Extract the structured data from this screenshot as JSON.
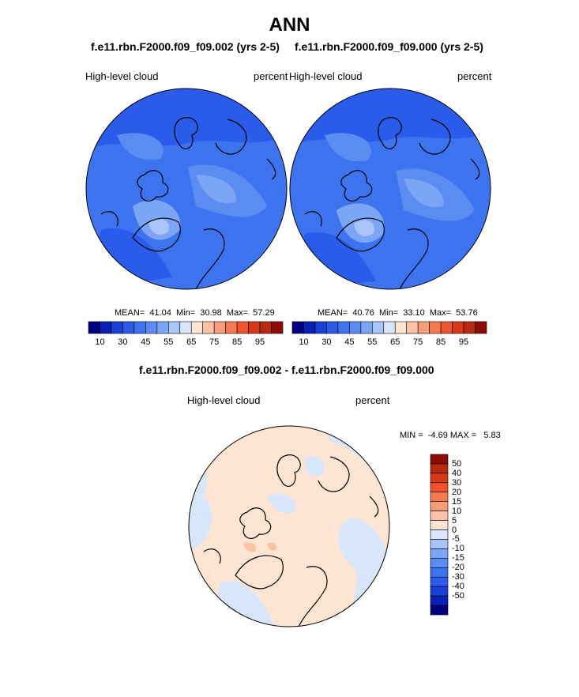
{
  "title": "ANN",
  "panels": [
    {
      "case_title": "f.e11.rbn.F2000.f09_f09.002 (yrs 2-5)",
      "variable": "High-level cloud",
      "units": "percent",
      "stats": "MEAN=  41.04  Min=  30.98  Max=  57.29"
    },
    {
      "case_title": "f.e11.rbn.F2000.f09_f09.000 (yrs 2-5)",
      "variable": "High-level cloud",
      "units": "percent",
      "stats": "MEAN=  40.76  Min=  33.10  Max=  53.76"
    }
  ],
  "colorbar_top": {
    "colors": [
      "#00007f",
      "#0a1fb5",
      "#1740d8",
      "#2a5bea",
      "#3d73ef",
      "#5a8cf2",
      "#7ba6f5",
      "#a8c4f8",
      "#d7e6fb",
      "#fde4d3",
      "#fbc3a6",
      "#f89d79",
      "#f47a52",
      "#ec5530",
      "#d7381a",
      "#b72a0d",
      "#8c0b02"
    ],
    "tick_labels": [
      "10",
      "30",
      "45",
      "55",
      "65",
      "75",
      "85",
      "95"
    ]
  },
  "diff": {
    "title": "f.e11.rbn.F2000.f09_f09.002 - f.e11.rbn.F2000.f09_f09.000",
    "variable": "High-level cloud",
    "units": "percent",
    "stats": "MIN =  -4.69 MAX =   5.83"
  },
  "colorbar_diff": {
    "colors": [
      "#8c0b02",
      "#b72a0d",
      "#d7381a",
      "#f2532a",
      "#f47a52",
      "#f89d79",
      "#fbc3a6",
      "#fde4d3",
      "#d7e6fb",
      "#a8c4f8",
      "#7ba6f5",
      "#5a8cf2",
      "#3d73ef",
      "#2a5bea",
      "#1740d8",
      "#0a1fb5",
      "#00007f"
    ],
    "tick_labels": [
      "50",
      "40",
      "30",
      "20",
      "15",
      "10",
      "5",
      "0",
      "-5",
      "-10",
      "-15",
      "-20",
      "-30",
      "-40",
      "-50"
    ]
  }
}
